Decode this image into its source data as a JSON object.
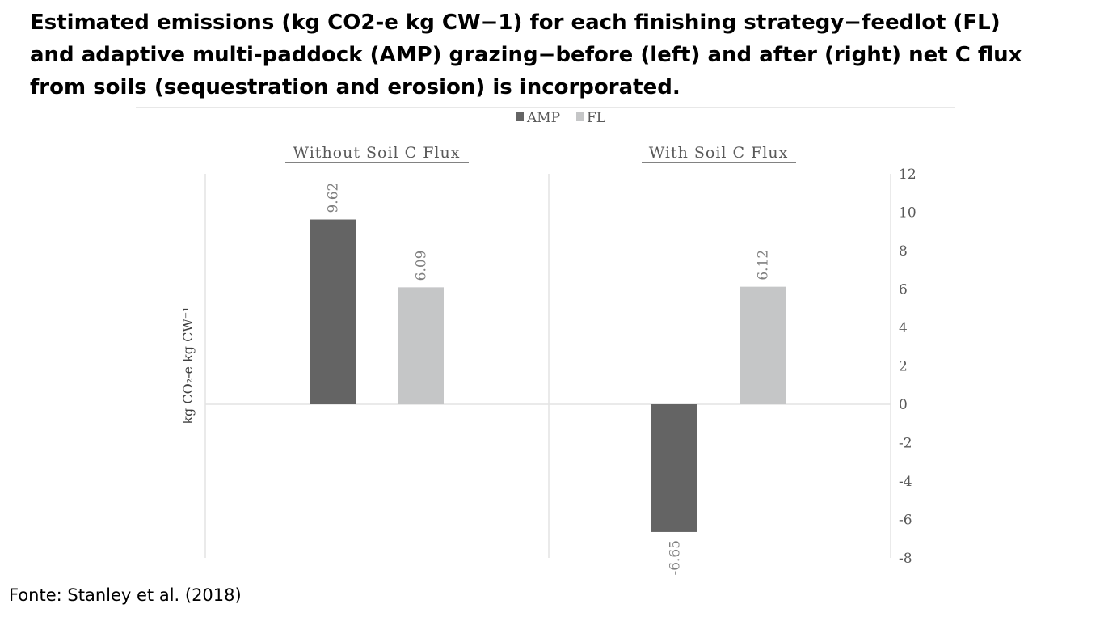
{
  "slide": {
    "title": "Estimated emissions (kg CO2-e kg CW−1) for each finishing strategy−feedlot (FL) and adaptive multi-paddock (AMP) grazing−before (left) and after (right) net C flux from soils (sequestration and erosion) is incorporated.",
    "source": "Fonte: Stanley et al. (2018)"
  },
  "chart_data": {
    "type": "bar",
    "panels": [
      "Without  Soil  C Flux",
      "With  Soil  C Flux"
    ],
    "series": [
      {
        "name": "AMP",
        "color": "#646464",
        "values": [
          9.62,
          -6.65
        ]
      },
      {
        "name": "FL",
        "color": "#c5c6c7",
        "values": [
          6.09,
          6.12
        ]
      }
    ],
    "data_labels": [
      [
        "9.62",
        "-6.65"
      ],
      [
        "6.09",
        "6.12"
      ]
    ],
    "ylabel": "kg CO₂-e kg CW⁻¹",
    "ylim": [
      -8,
      12
    ],
    "yticks": [
      12,
      10,
      8,
      6,
      4,
      2,
      0,
      -2,
      -4,
      -6,
      -8
    ],
    "ytick_labels": [
      "12",
      "10",
      "8",
      "6",
      "4",
      "2",
      "0",
      "-2",
      "-4",
      "-6",
      "-8"
    ],
    "y_axis_side": "right",
    "legend_position": "top-center",
    "grid": false
  }
}
